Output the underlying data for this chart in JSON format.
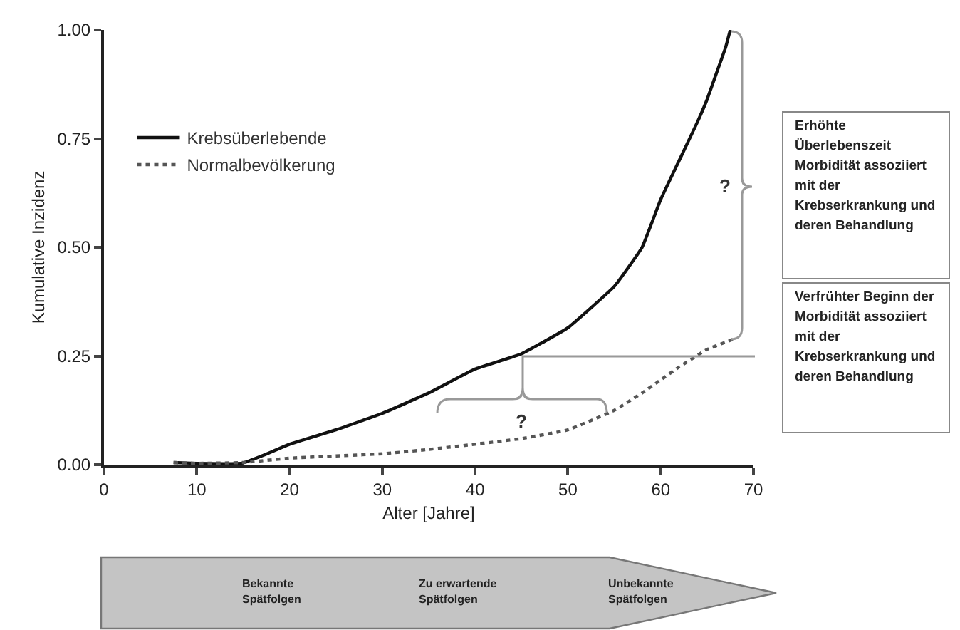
{
  "chart_data": {
    "type": "line",
    "xlabel": "Alter [Jahre]",
    "ylabel": "Kumulative Inzidenz",
    "xlim": [
      0,
      70
    ],
    "xticks": [
      0,
      10,
      20,
      30,
      40,
      50,
      60,
      70
    ],
    "ylim": [
      0,
      1
    ],
    "yticks": [
      {
        "value": 0,
        "label": "0.00"
      },
      {
        "value": 0.25,
        "label": "0.25"
      },
      {
        "value": 0.5,
        "label": "0.50"
      },
      {
        "value": 0.75,
        "label": "0.75"
      },
      {
        "value": 1,
        "label": "1.00"
      }
    ],
    "grid": false,
    "legend": "top left",
    "marker": "none",
    "series": [
      {
        "name": "Krebsüberlebende",
        "color": "#111111",
        "line_style": "solid",
        "x": [
          7.5,
          10,
          13,
          15,
          17,
          20,
          25,
          30,
          35,
          40,
          45,
          50,
          55,
          58,
          60,
          62,
          64,
          65,
          66,
          67,
          67.5
        ],
        "values": [
          0.005,
          0.003,
          0.002,
          0.004,
          0.02,
          0.047,
          0.08,
          0.118,
          0.165,
          0.22,
          0.255,
          0.315,
          0.41,
          0.5,
          0.61,
          0.7,
          0.79,
          0.84,
          0.9,
          0.96,
          1.0
        ]
      },
      {
        "name": "Normalbevölkerung",
        "color": "#555555",
        "line_style": "dotted",
        "x": [
          7.5,
          10,
          15,
          20,
          25,
          30,
          35,
          40,
          45,
          50,
          55,
          58,
          60,
          62,
          65,
          68
        ],
        "values": [
          0.005,
          0.003,
          0.005,
          0.015,
          0.02,
          0.025,
          0.035,
          0.047,
          0.06,
          0.08,
          0.125,
          0.165,
          0.195,
          0.225,
          0.265,
          0.29
        ]
      }
    ],
    "annotations": [
      "?",
      "?",
      "Erhöhte Überlebenszeit Morbidität assoziiert mit der Krebserkrankung und deren Behandlung",
      "Verfrühter Beginn der Morbidität assoziiert mit der Krebserkrankung und deren Behandlung",
      "Bekannte Spätfolgen",
      "Zu erwartende Spätfolgen",
      "Unbekannte Spätfolgen"
    ]
  }
}
